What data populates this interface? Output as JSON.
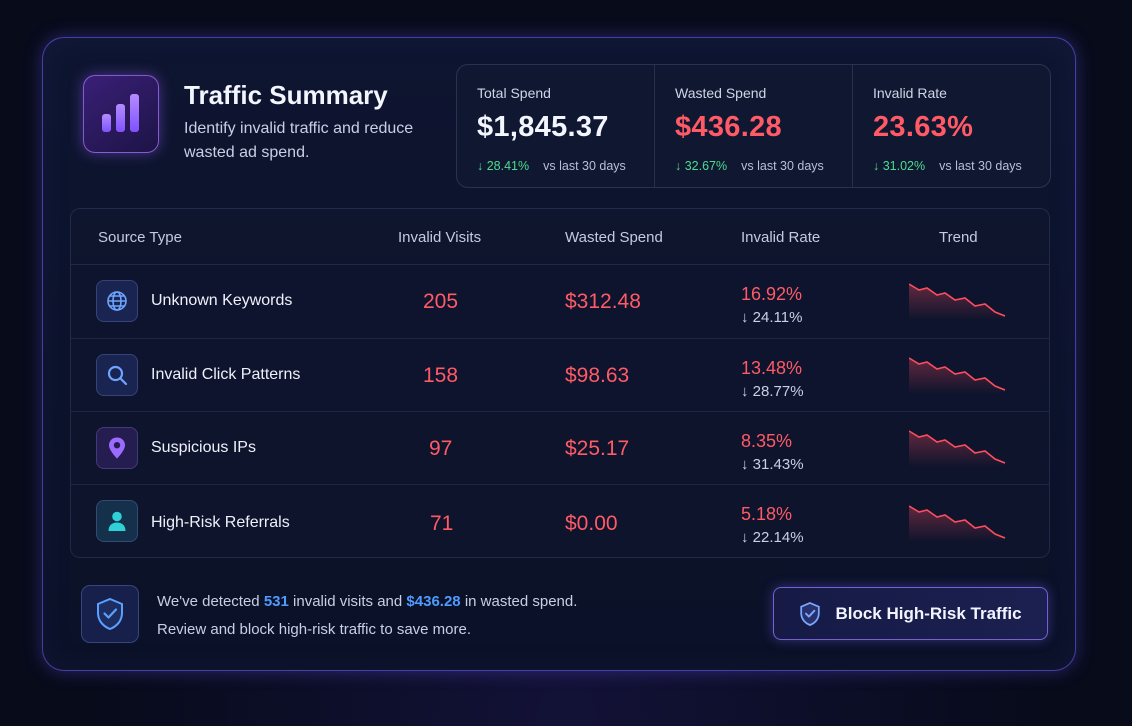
{
  "header": {
    "title": "Traffic Summary",
    "subtitle": "Identify invalid traffic and reduce wasted ad spend.",
    "logo_icon": "bar-chart-icon"
  },
  "stats": [
    {
      "label": "Total Spend",
      "value": "$1,845.37",
      "delta": "↓ 28.41%",
      "compare": "vs last 30 days",
      "color": "#f3f5ff"
    },
    {
      "label": "Wasted Spend",
      "value": "$436.28",
      "delta": "↓ 32.67%",
      "compare": "vs last 30 days",
      "color": "#ff5a66"
    },
    {
      "label": "Invalid Rate",
      "value": "23.63%",
      "delta": "↓ 31.02%",
      "compare": "vs last 30 days",
      "color": "#ff5a66"
    }
  ],
  "table": {
    "headers": [
      "Source Type",
      "Invalid Visits",
      "Wasted Spend",
      "Invalid Rate",
      "Trend"
    ],
    "rows": [
      {
        "source": "Unknown Keywords",
        "icon": "globe-icon",
        "visits": "205",
        "spend": "$312.48",
        "rate": "16.92%",
        "rate_delta": "↓ 24.11%"
      },
      {
        "source": "Invalid Click Patterns",
        "icon": "search-icon",
        "visits": "158",
        "spend": "$98.63",
        "rate": "13.48%",
        "rate_delta": "↓ 28.77%"
      },
      {
        "source": "Suspicious IPs",
        "icon": "location-pin-icon",
        "visits": "97",
        "spend": "$25.17",
        "rate": "8.35%",
        "rate_delta": "↓ 31.43%"
      },
      {
        "source": "High-Risk Referrals",
        "icon": "user-icon",
        "visits": "71",
        "spend": "$0.00",
        "rate": "5.18%",
        "rate_delta": "↓ 22.14%"
      }
    ]
  },
  "footer": {
    "msg_prefix": "We've detected ",
    "visits": "531",
    "msg_middle": " invalid visits and ",
    "spend": "$436.28",
    "msg_suffix": " in wasted spend.",
    "msg_line2": "Review and block high-risk traffic to save more.",
    "button_label": "Block High-Risk Traffic"
  },
  "colors": {
    "accent": "#4f9bff",
    "danger": "#ff5a66",
    "positive": "#4ddc8e",
    "border_glow": "#7a64ff"
  }
}
